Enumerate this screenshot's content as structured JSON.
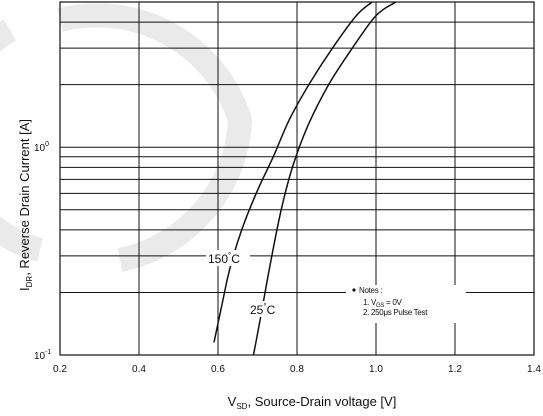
{
  "chart_data": {
    "type": "line",
    "xlabel": {
      "main": "V",
      "sub": "SD",
      "rest": ", Source-Drain voltage [V]"
    },
    "ylabel": {
      "main": "I",
      "sub": "DR",
      "rest": ", Reverse Drain Current [A]"
    },
    "x_scale": "linear",
    "y_scale": "log",
    "xlim": [
      0.2,
      1.4
    ],
    "ylim": [
      0.1,
      5
    ],
    "grid": true,
    "x_ticks": [
      {
        "v": 0.2,
        "label": "0.2"
      },
      {
        "v": 0.4,
        "label": "0.4"
      },
      {
        "v": 0.6,
        "label": "0.6"
      },
      {
        "v": 0.8,
        "label": "0.8"
      },
      {
        "v": 1.0,
        "label": "1.0"
      },
      {
        "v": 1.2,
        "label": "1.2"
      },
      {
        "v": 1.4,
        "label": "1.4"
      }
    ],
    "y_tick_labels": [
      {
        "v": 0.1,
        "base": "10",
        "exp": "-1"
      },
      {
        "v": 1,
        "base": "10",
        "exp": "0"
      }
    ],
    "y_gridlines": [
      0.2,
      0.3,
      0.4,
      0.5,
      0.6,
      0.7,
      0.8,
      0.9,
      1,
      2,
      3,
      4,
      5
    ],
    "series": [
      {
        "name": "150°C",
        "label_main": "150",
        "label_deg": "°",
        "label_unit": "C",
        "points": [
          [
            0.59,
            0.115
          ],
          [
            0.61,
            0.175
          ],
          [
            0.63,
            0.26
          ],
          [
            0.66,
            0.4
          ],
          [
            0.7,
            0.62
          ],
          [
            0.74,
            0.9
          ],
          [
            0.78,
            1.35
          ],
          [
            0.83,
            2.0
          ],
          [
            0.89,
            3.0
          ],
          [
            0.95,
            4.3
          ],
          [
            0.99,
            5.0
          ]
        ]
      },
      {
        "name": "25°C",
        "label_main": "25",
        "label_deg": "°",
        "label_unit": "C",
        "points": [
          [
            0.69,
            0.1
          ],
          [
            0.71,
            0.16
          ],
          [
            0.73,
            0.26
          ],
          [
            0.76,
            0.5
          ],
          [
            0.79,
            0.82
          ],
          [
            0.83,
            1.3
          ],
          [
            0.88,
            2.0
          ],
          [
            0.94,
            3.0
          ],
          [
            1.0,
            4.3
          ],
          [
            1.05,
            5.0
          ]
        ]
      }
    ],
    "notes": {
      "title": "Notes :",
      "line1_a": "1. V",
      "line1_sub": "GS",
      "line1_b": " = 0V",
      "line2": "2. 250μs Pulse Test"
    }
  }
}
